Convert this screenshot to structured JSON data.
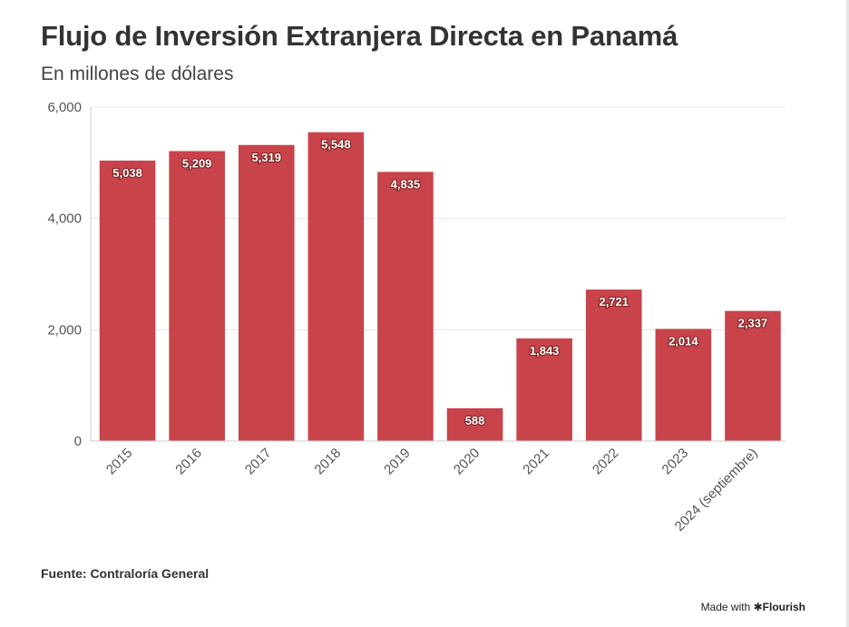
{
  "header": {
    "title": "Flujo de Inversión Extranjera Directa en Panamá",
    "subtitle": "En millones de dólares"
  },
  "footer": {
    "source": "Fuente: Contraloría General",
    "made_with_prefix": "Made with",
    "made_with_brand": "✱Flourish"
  },
  "colors": {
    "bar": "#c8434a",
    "grid": "#e6e6e6",
    "axis": "#cccccc"
  },
  "chart_data": {
    "type": "bar",
    "title": "Flujo de Inversión Extranjera Directa en Panamá",
    "subtitle": "En millones de dólares",
    "categories": [
      "2015",
      "2016",
      "2017",
      "2018",
      "2019",
      "2020",
      "2021",
      "2022",
      "2023",
      "2024 (septiembre)"
    ],
    "values": [
      5038,
      5209,
      5319,
      5548,
      4835,
      588,
      1843,
      2721,
      2014,
      2337
    ],
    "value_labels": [
      "5,038",
      "5,209",
      "5,319",
      "5,548",
      "4,835",
      "588",
      "1,843",
      "2,721",
      "2,014",
      "2,337"
    ],
    "yticks": [
      0,
      2000,
      4000,
      6000
    ],
    "ytick_labels": [
      "0",
      "2,000",
      "4,000",
      "6,000"
    ],
    "ylim": [
      0,
      6000
    ],
    "grid": true,
    "legend": "none"
  }
}
